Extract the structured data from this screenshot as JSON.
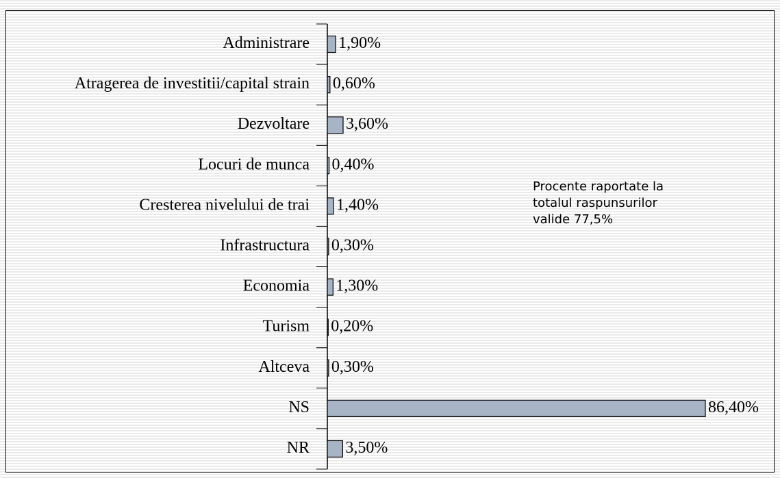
{
  "chart_data": {
    "type": "hbar",
    "categories": [
      "Administrare",
      "Atragerea de investitii/capital strain",
      "Dezvoltare",
      "Locuri de munca",
      "Cresterea nivelului de trai",
      "Infrastructura",
      "Economia",
      "Turism",
      "Altceva",
      "NS",
      "NR"
    ],
    "values": [
      1.9,
      0.6,
      3.6,
      0.4,
      1.4,
      0.3,
      1.3,
      0.2,
      0.3,
      86.4,
      3.5
    ],
    "value_labels": [
      "1,90%",
      "0,60%",
      "3,60%",
      "0,40%",
      "1,40%",
      "0,30%",
      "1,30%",
      "0,20%",
      "0,30%",
      "86,40%",
      "3,50%"
    ],
    "color": "#a6b4c5",
    "xlim": [
      0,
      86.4
    ],
    "annotation": [
      "Procente raportate la",
      "totalul raspunsurilor",
      "valide 77,5%"
    ]
  }
}
